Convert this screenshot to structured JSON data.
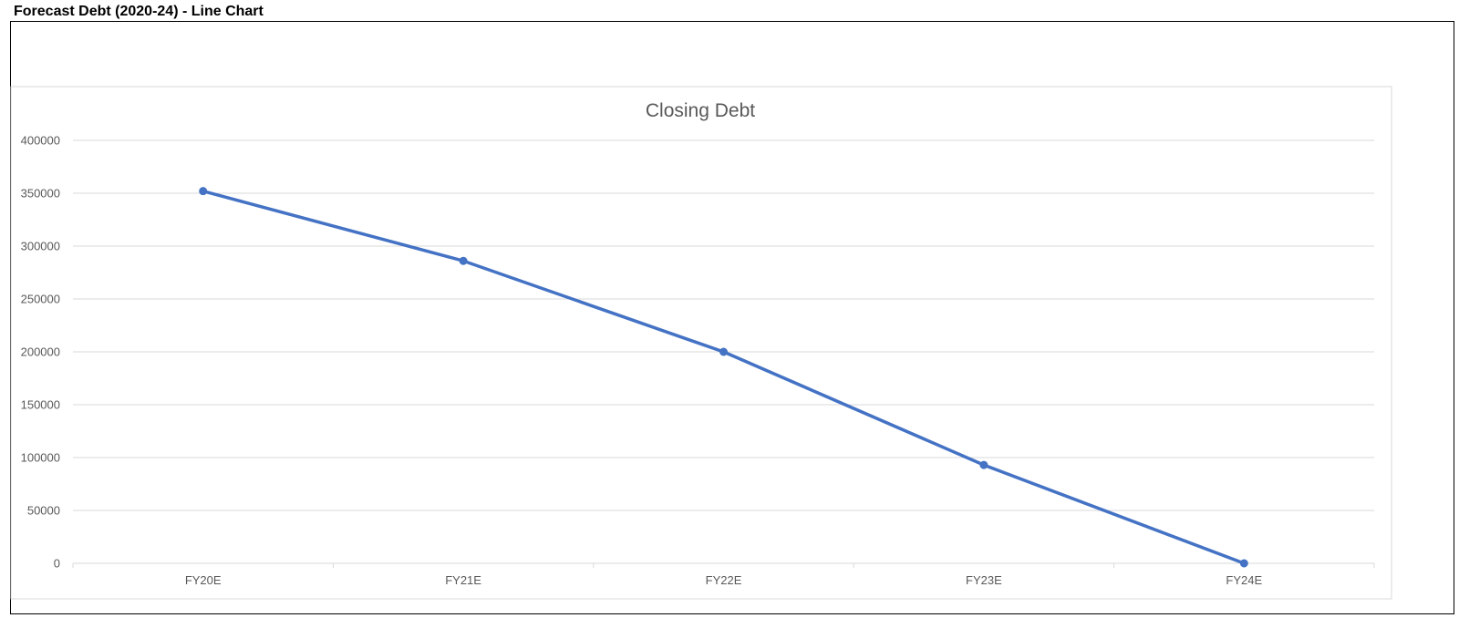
{
  "sheet": {
    "title": "Forecast Debt (2020-24) - Line Chart"
  },
  "chart_data": {
    "type": "line",
    "title": "Closing Debt",
    "xlabel": "",
    "ylabel": "",
    "categories": [
      "FY20E",
      "FY21E",
      "FY22E",
      "FY23E",
      "FY24E"
    ],
    "series": [
      {
        "values": [
          352000,
          286000,
          200000,
          93000,
          0
        ],
        "color": "#4472C4"
      }
    ],
    "ylim": [
      0,
      400000
    ],
    "yticks": [
      0,
      50000,
      100000,
      150000,
      200000,
      250000,
      300000,
      350000,
      400000
    ],
    "grid": true,
    "legend": "none",
    "colors": {
      "line": "#4472C4",
      "grid": "#D9D9D9",
      "text": "#595959",
      "chart_border": "#D9D9D9"
    }
  }
}
